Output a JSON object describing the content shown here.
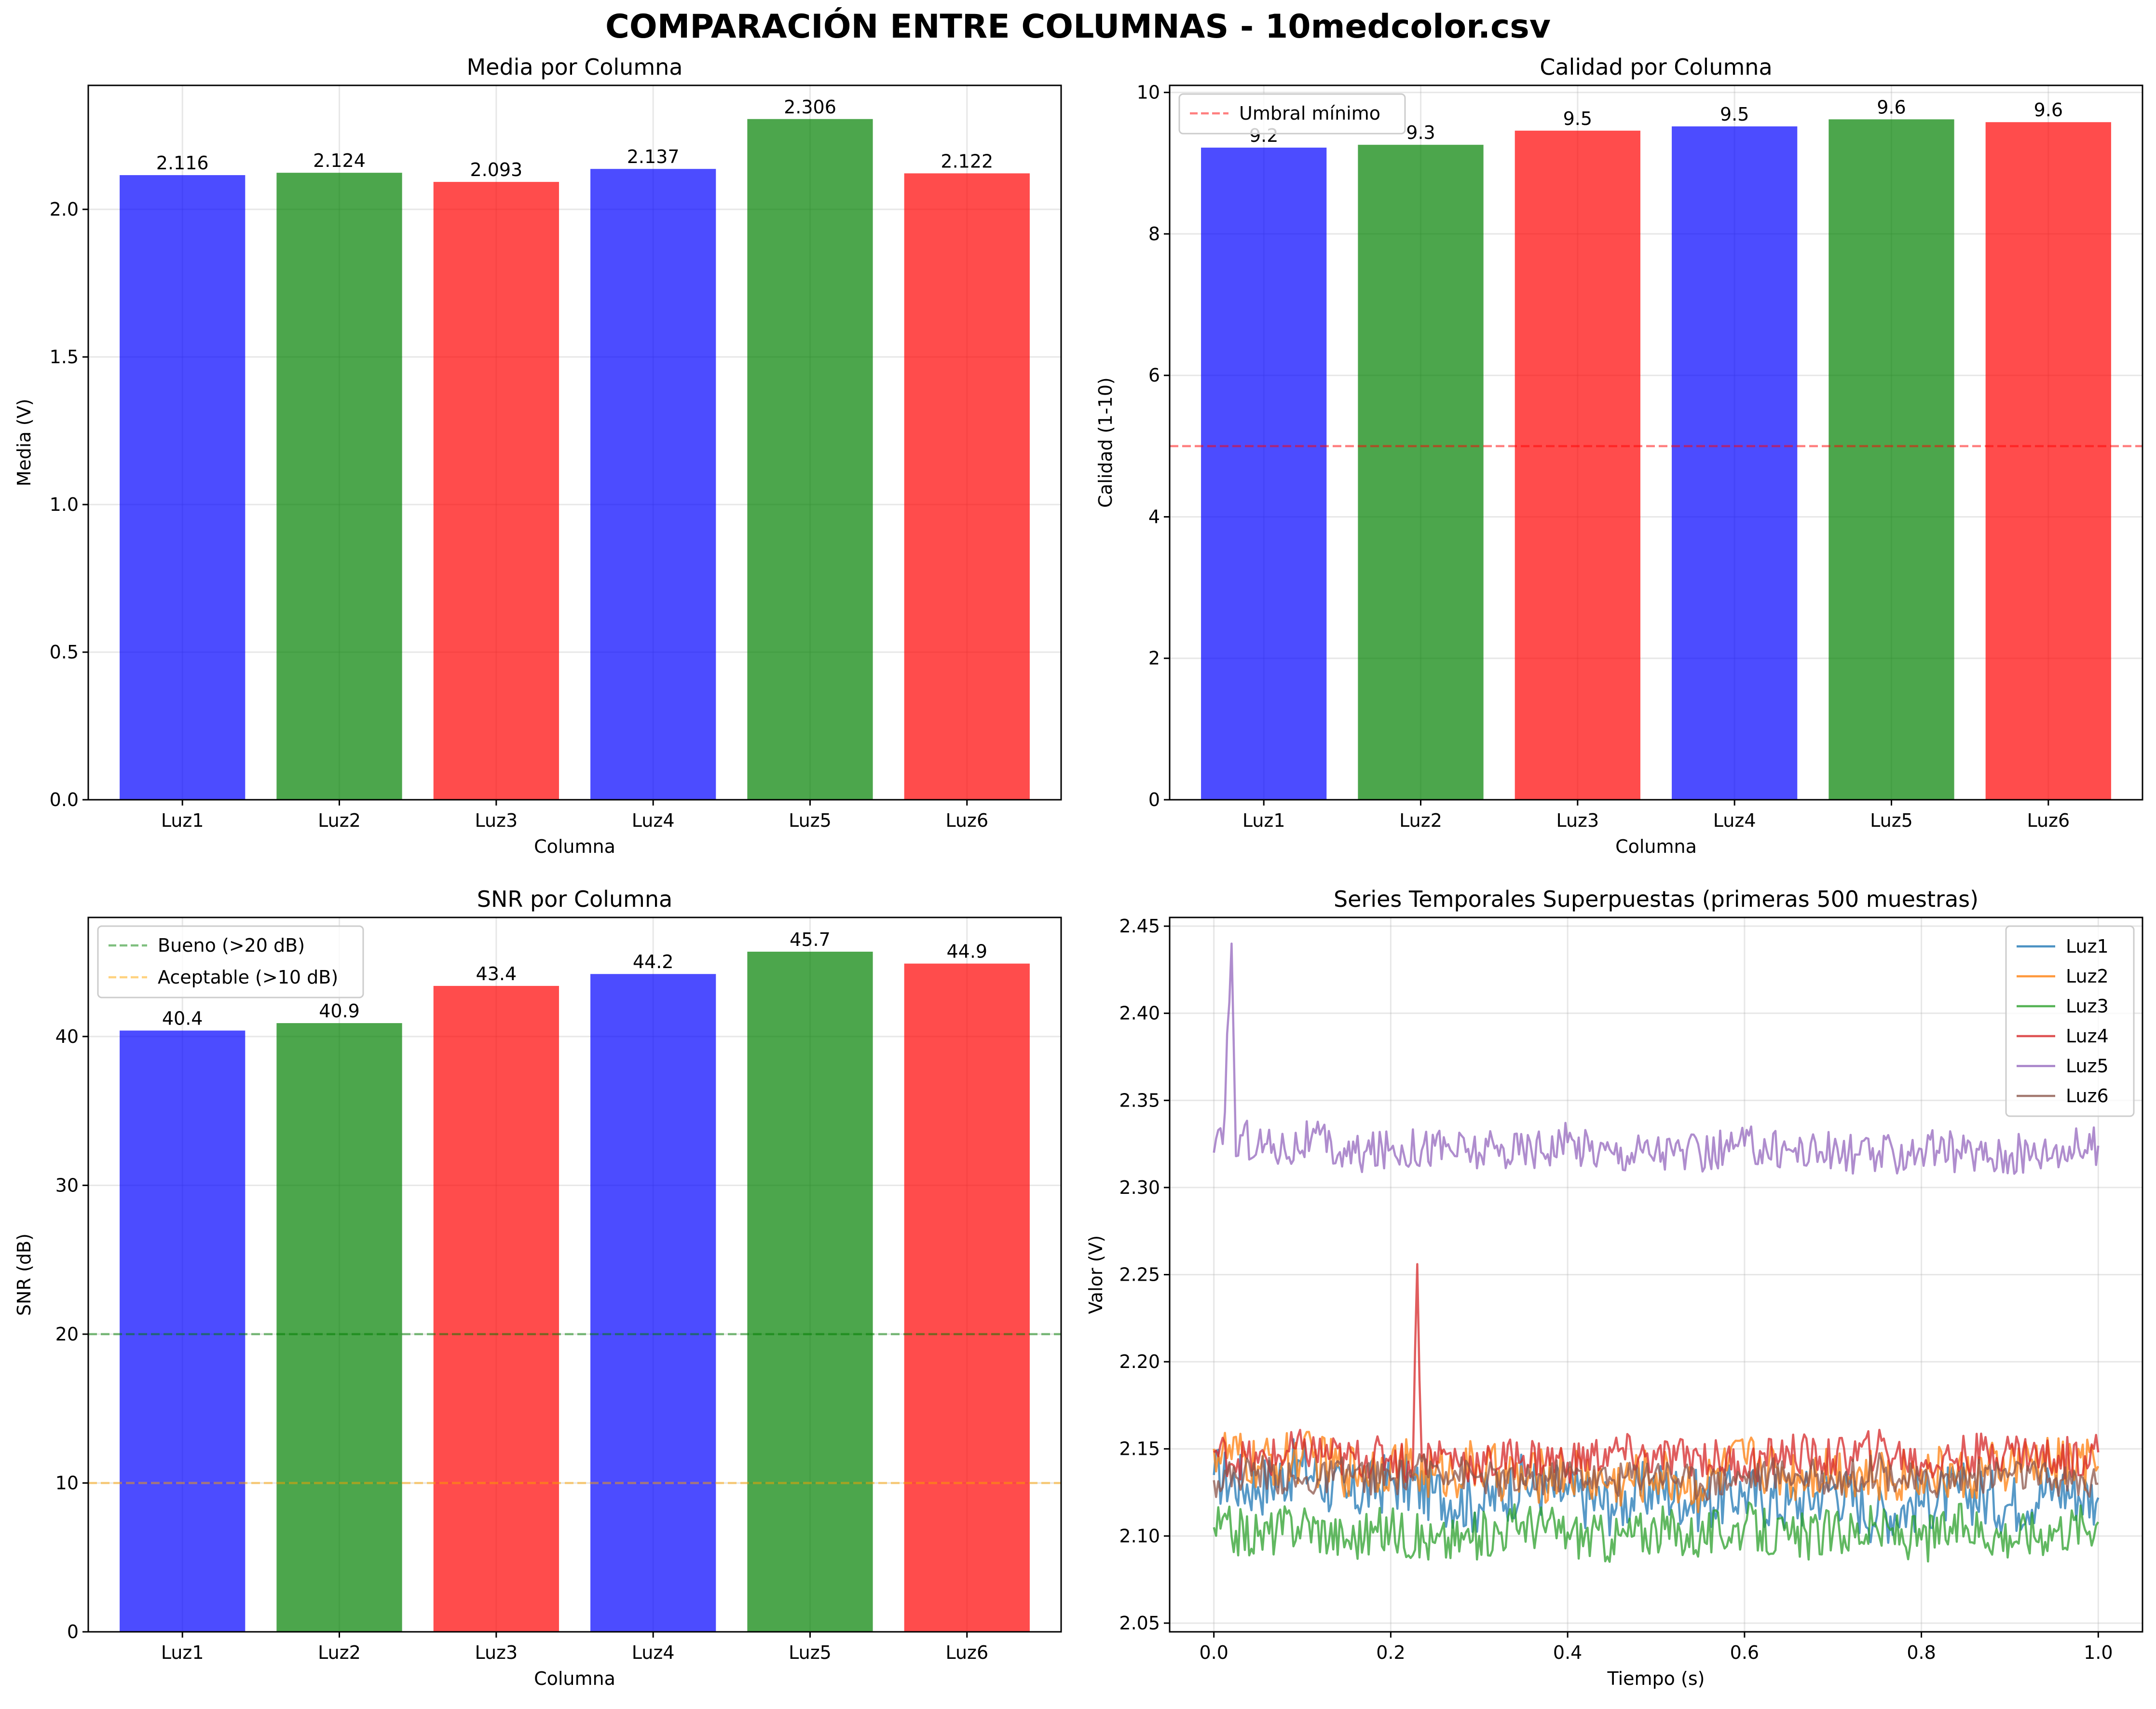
{
  "figure_title": "COMPARACIÓN ENTRE COLUMNAS - 10medcolor.csv",
  "colors": {
    "blue": "#0000ff",
    "green": "#008000",
    "red": "#ff0000",
    "bar_alpha": 0.7
  },
  "chart_data": [
    {
      "type": "bar",
      "title": "Media por Columna",
      "xlabel": "Columna",
      "ylabel": "Media (V)",
      "categories": [
        "Luz1",
        "Luz2",
        "Luz3",
        "Luz4",
        "Luz5",
        "Luz6"
      ],
      "values": [
        2.116,
        2.124,
        2.093,
        2.137,
        2.306,
        2.122
      ],
      "value_labels": [
        "2.116",
        "2.124",
        "2.093",
        "2.137",
        "2.306",
        "2.122"
      ],
      "bar_colors": [
        "blue",
        "green",
        "red",
        "blue",
        "green",
        "red"
      ],
      "ylim": [
        0,
        2.42
      ],
      "yticks": [
        0,
        0.5,
        1.0,
        1.5,
        2.0
      ],
      "ytick_labels": [
        "0.0",
        "0.5",
        "1.0",
        "1.5",
        "2.0"
      ],
      "grid": true
    },
    {
      "type": "bar",
      "title": "Calidad por Columna",
      "xlabel": "Columna",
      "ylabel": "Calidad (1-10)",
      "categories": [
        "Luz1",
        "Luz2",
        "Luz3",
        "Luz4",
        "Luz5",
        "Luz6"
      ],
      "values": [
        9.22,
        9.26,
        9.46,
        9.52,
        9.62,
        9.58
      ],
      "value_labels": [
        "9.2",
        "9.3",
        "9.5",
        "9.5",
        "9.6",
        "9.6"
      ],
      "bar_colors": [
        "blue",
        "green",
        "red",
        "blue",
        "green",
        "red"
      ],
      "ylim": [
        0,
        10.1
      ],
      "yticks": [
        0,
        2,
        4,
        6,
        8,
        10
      ],
      "ytick_labels": [
        "0",
        "2",
        "4",
        "6",
        "8",
        "10"
      ],
      "reference_lines": [
        {
          "value": 5,
          "label": "Umbral mínimo",
          "color": "#ff0000"
        }
      ],
      "legend_position": "top-left",
      "grid": true
    },
    {
      "type": "bar",
      "title": "SNR por Columna",
      "xlabel": "Columna",
      "ylabel": "SNR (dB)",
      "categories": [
        "Luz1",
        "Luz2",
        "Luz3",
        "Luz4",
        "Luz5",
        "Luz6"
      ],
      "values": [
        40.4,
        40.9,
        43.4,
        44.2,
        45.7,
        44.9
      ],
      "value_labels": [
        "40.4",
        "40.9",
        "43.4",
        "44.2",
        "45.7",
        "44.9"
      ],
      "bar_colors": [
        "blue",
        "green",
        "red",
        "blue",
        "green",
        "red"
      ],
      "ylim": [
        0,
        48
      ],
      "yticks": [
        0,
        10,
        20,
        30,
        40
      ],
      "ytick_labels": [
        "0",
        "10",
        "20",
        "30",
        "40"
      ],
      "reference_lines": [
        {
          "value": 20,
          "label": "Bueno (>20 dB)",
          "color": "#008000"
        },
        {
          "value": 10,
          "label": "Aceptable (>10 dB)",
          "color": "#ffa500"
        }
      ],
      "legend_position": "top-left",
      "grid": true
    },
    {
      "type": "line",
      "title": "Series Temporales Superpuestas (primeras 500 muestras)",
      "xlabel": "Tiempo (s)",
      "ylabel": "Valor (V)",
      "xlim": [
        -0.05,
        1.05
      ],
      "ylim": [
        2.045,
        2.455
      ],
      "xticks": [
        0.0,
        0.2,
        0.4,
        0.6,
        0.8,
        1.0
      ],
      "xtick_labels": [
        "0.0",
        "0.2",
        "0.4",
        "0.6",
        "0.8",
        "1.0"
      ],
      "yticks": [
        2.05,
        2.1,
        2.15,
        2.2,
        2.25,
        2.3,
        2.35,
        2.4,
        2.45
      ],
      "ytick_labels": [
        "2.05",
        "2.10",
        "2.15",
        "2.20",
        "2.25",
        "2.30",
        "2.35",
        "2.40",
        "2.45"
      ],
      "legend_position": "top-right",
      "grid": true,
      "series": [
        {
          "name": "Luz1",
          "color": "#1f77b4",
          "x": [
            0.0,
            0.05,
            0.1,
            0.15,
            0.2,
            0.25,
            0.3,
            0.35,
            0.4,
            0.45,
            0.5,
            0.55,
            0.6,
            0.65,
            0.7,
            0.75,
            0.8,
            0.85,
            0.9,
            0.95,
            1.0
          ],
          "y": [
            2.135,
            2.128,
            2.14,
            2.122,
            2.132,
            2.125,
            2.118,
            2.13,
            2.124,
            2.118,
            2.128,
            2.12,
            2.125,
            2.118,
            2.128,
            2.112,
            2.12,
            2.125,
            2.118,
            2.128,
            2.122
          ]
        },
        {
          "name": "Luz2",
          "color": "#ff7f0e",
          "x": [
            0.0,
            0.05,
            0.1,
            0.15,
            0.2,
            0.25,
            0.3,
            0.35,
            0.4,
            0.45,
            0.5,
            0.55,
            0.6,
            0.65,
            0.7,
            0.75,
            0.8,
            0.85,
            0.9,
            0.95,
            1.0
          ],
          "y": [
            2.15,
            2.14,
            2.146,
            2.138,
            2.142,
            2.135,
            2.14,
            2.132,
            2.138,
            2.13,
            2.136,
            2.128,
            2.145,
            2.135,
            2.14,
            2.132,
            2.138,
            2.134,
            2.14,
            2.142,
            2.14
          ]
        },
        {
          "name": "Luz3",
          "color": "#2ca02c",
          "x": [
            0.0,
            0.05,
            0.1,
            0.15,
            0.2,
            0.25,
            0.3,
            0.35,
            0.4,
            0.45,
            0.5,
            0.55,
            0.6,
            0.65,
            0.7,
            0.75,
            0.8,
            0.85,
            0.9,
            0.95,
            1.0
          ],
          "y": [
            2.105,
            2.1,
            2.108,
            2.098,
            2.104,
            2.096,
            2.1,
            2.108,
            2.102,
            2.098,
            2.104,
            2.1,
            2.106,
            2.098,
            2.102,
            2.104,
            2.098,
            2.106,
            2.1,
            2.104,
            2.108
          ]
        },
        {
          "name": "Luz4",
          "color": "#d62728",
          "x": [
            0.0,
            0.05,
            0.1,
            0.15,
            0.2,
            0.225,
            0.23,
            0.235,
            0.25,
            0.3,
            0.35,
            0.4,
            0.45,
            0.5,
            0.55,
            0.6,
            0.65,
            0.7,
            0.75,
            0.8,
            0.85,
            0.9,
            0.95,
            1.0
          ],
          "y": [
            2.148,
            2.142,
            2.15,
            2.144,
            2.146,
            2.14,
            2.256,
            2.145,
            2.148,
            2.14,
            2.146,
            2.142,
            2.148,
            2.144,
            2.146,
            2.14,
            2.148,
            2.144,
            2.15,
            2.142,
            2.146,
            2.15,
            2.144,
            2.148
          ]
        },
        {
          "name": "Luz5",
          "color": "#9467bd",
          "x": [
            0.0,
            0.01,
            0.02,
            0.025,
            0.03,
            0.05,
            0.08,
            0.11,
            0.15,
            0.2,
            0.25,
            0.3,
            0.35,
            0.4,
            0.45,
            0.5,
            0.55,
            0.6,
            0.65,
            0.7,
            0.75,
            0.8,
            0.85,
            0.9,
            0.95,
            1.0
          ],
          "y": [
            2.32,
            2.325,
            2.44,
            2.318,
            2.33,
            2.325,
            2.322,
            2.328,
            2.318,
            2.322,
            2.324,
            2.32,
            2.322,
            2.326,
            2.32,
            2.322,
            2.318,
            2.324,
            2.322,
            2.32,
            2.318,
            2.322,
            2.32,
            2.318,
            2.322,
            2.324
          ]
        },
        {
          "name": "Luz6",
          "color": "#8c564b",
          "x": [
            0.0,
            0.05,
            0.1,
            0.15,
            0.2,
            0.25,
            0.3,
            0.35,
            0.4,
            0.45,
            0.5,
            0.55,
            0.6,
            0.65,
            0.7,
            0.75,
            0.8,
            0.85,
            0.9,
            0.95,
            1.0
          ],
          "y": [
            2.132,
            2.138,
            2.13,
            2.136,
            2.132,
            2.14,
            2.134,
            2.13,
            2.136,
            2.132,
            2.138,
            2.13,
            2.134,
            2.136,
            2.132,
            2.138,
            2.13,
            2.134,
            2.136,
            2.132,
            2.13
          ]
        }
      ]
    }
  ]
}
